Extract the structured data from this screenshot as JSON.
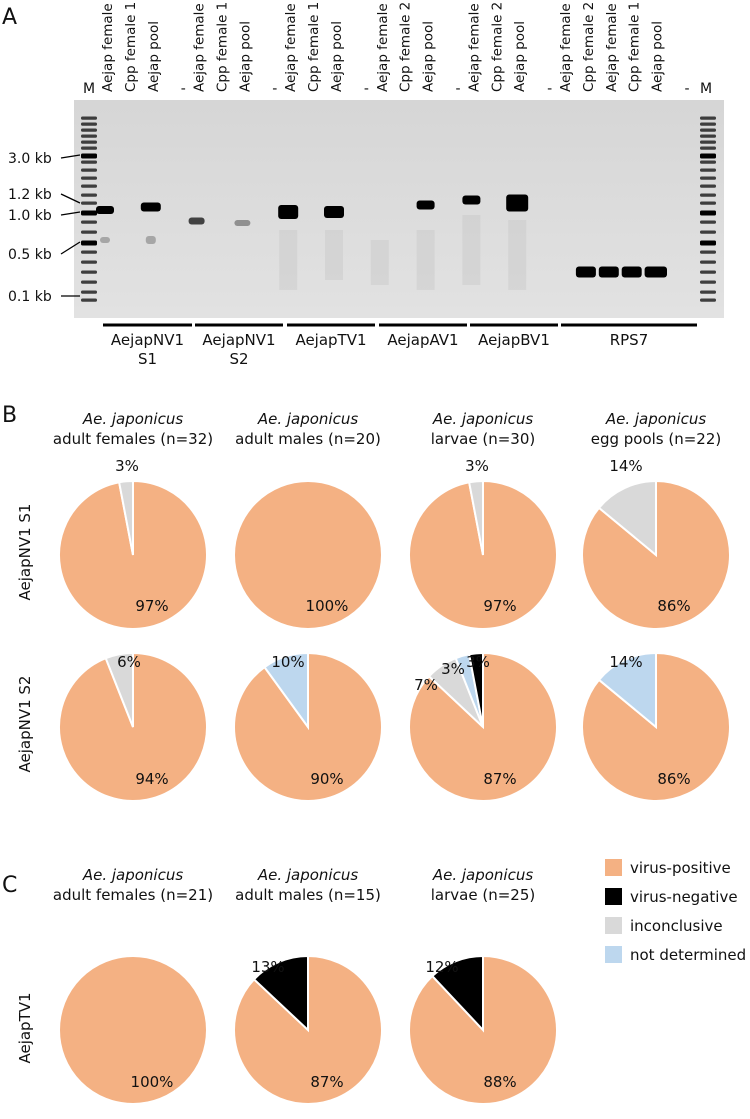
{
  "colors": {
    "virus_positive": "#f4b183",
    "virus_negative": "#000000",
    "inconclusive": "#d9d9d9",
    "not_determined": "#bdd7ee"
  },
  "panel_a": {
    "letter": "A",
    "marker_label": "M",
    "lane_labels": [
      "Aejap female 1",
      "Cpp female 1",
      "Aejap pool",
      "-",
      "Aejap female 1",
      "Cpp female 1",
      "Aejap pool",
      "-",
      "Aejap female 1",
      "Cpp female 1",
      "Aejap pool",
      "-",
      "Aejap female 2",
      "Cpp female 2",
      "Aejap pool",
      "-",
      "Aejap female 2",
      "Cpp female 2",
      "Aejap pool",
      "-",
      "Aejap female 2",
      "Cpp female 2",
      "Aejap female 1",
      "Cpp female 1",
      "Aejap pool",
      "-"
    ],
    "size_labels": [
      "3.0 kb",
      "1.2 kb",
      "1.0 kb",
      "0.5 kb",
      "0.1 kb"
    ],
    "groups": [
      {
        "line1": "AejapNV1",
        "line2": "S1"
      },
      {
        "line1": "AejapNV1",
        "line2": "S2"
      },
      {
        "line1": "AejapTV1",
        "line2": ""
      },
      {
        "line1": "AejapAV1",
        "line2": ""
      },
      {
        "line1": "AejapBV1",
        "line2": ""
      },
      {
        "line1": "RPS7",
        "line2": ""
      }
    ]
  },
  "panel_b": {
    "letter": "B",
    "row_labels": [
      "AejapNV1 S1",
      "AejapNV1 S2"
    ]
  },
  "panel_c": {
    "letter": "C",
    "row_labels": [
      "AejapTV1"
    ]
  },
  "chart_data": [
    {
      "type": "pie",
      "panel": "B",
      "row": "AejapNV1 S1",
      "title_species": "Ae. japonicus",
      "title_group": "adult females (n=32)",
      "slices": [
        {
          "label": "virus-positive",
          "value": 97,
          "text": "97%"
        },
        {
          "label": "inconclusive",
          "value": 3,
          "text": "3%"
        }
      ]
    },
    {
      "type": "pie",
      "panel": "B",
      "row": "AejapNV1 S1",
      "title_species": "Ae. japonicus",
      "title_group": "adult males (n=20)",
      "slices": [
        {
          "label": "virus-positive",
          "value": 100,
          "text": "100%"
        }
      ]
    },
    {
      "type": "pie",
      "panel": "B",
      "row": "AejapNV1 S1",
      "title_species": "Ae. japonicus",
      "title_group": "larvae (n=30)",
      "slices": [
        {
          "label": "virus-positive",
          "value": 97,
          "text": "97%"
        },
        {
          "label": "inconclusive",
          "value": 3,
          "text": "3%"
        }
      ]
    },
    {
      "type": "pie",
      "panel": "B",
      "row": "AejapNV1 S1",
      "title_species": "Ae. japonicus",
      "title_group": "egg pools (n=22)",
      "slices": [
        {
          "label": "virus-positive",
          "value": 86,
          "text": "86%"
        },
        {
          "label": "inconclusive",
          "value": 14,
          "text": "14%"
        }
      ]
    },
    {
      "type": "pie",
      "panel": "B",
      "row": "AejapNV1 S2",
      "title_species": "",
      "title_group": "",
      "slices": [
        {
          "label": "virus-positive",
          "value": 94,
          "text": "94%"
        },
        {
          "label": "inconclusive",
          "value": 6,
          "text": "6%"
        }
      ]
    },
    {
      "type": "pie",
      "panel": "B",
      "row": "AejapNV1 S2",
      "title_species": "",
      "title_group": "",
      "slices": [
        {
          "label": "virus-positive",
          "value": 90,
          "text": "90%"
        },
        {
          "label": "not determined",
          "value": 10,
          "text": "10%"
        }
      ]
    },
    {
      "type": "pie",
      "panel": "B",
      "row": "AejapNV1 S2",
      "title_species": "",
      "title_group": "",
      "slices": [
        {
          "label": "virus-positive",
          "value": 87,
          "text": "87%"
        },
        {
          "label": "inconclusive",
          "value": 7,
          "text": "7%"
        },
        {
          "label": "not determined",
          "value": 3,
          "text": "3%"
        },
        {
          "label": "virus-negative",
          "value": 3,
          "text": "3%"
        }
      ]
    },
    {
      "type": "pie",
      "panel": "B",
      "row": "AejapNV1 S2",
      "title_species": "",
      "title_group": "",
      "slices": [
        {
          "label": "virus-positive",
          "value": 86,
          "text": "86%"
        },
        {
          "label": "not determined",
          "value": 14,
          "text": "14%"
        }
      ]
    },
    {
      "type": "pie",
      "panel": "C",
      "row": "AejapTV1",
      "title_species": "Ae. japonicus",
      "title_group": "adult females (n=21)",
      "slices": [
        {
          "label": "virus-positive",
          "value": 100,
          "text": "100%"
        }
      ]
    },
    {
      "type": "pie",
      "panel": "C",
      "row": "AejapTV1",
      "title_species": "Ae. japonicus",
      "title_group": "adult males (n=15)",
      "slices": [
        {
          "label": "virus-positive",
          "value": 87,
          "text": "87%"
        },
        {
          "label": "virus-negative",
          "value": 13,
          "text": "13%"
        }
      ]
    },
    {
      "type": "pie",
      "panel": "C",
      "row": "AejapTV1",
      "title_species": "Ae. japonicus",
      "title_group": "larvae (n=25)",
      "slices": [
        {
          "label": "virus-positive",
          "value": 88,
          "text": "88%"
        },
        {
          "label": "virus-negative",
          "value": 12,
          "text": "12%"
        }
      ]
    }
  ],
  "legend": [
    {
      "label": "virus-positive",
      "color": "#f4b183"
    },
    {
      "label": "virus-negative",
      "color": "#000000"
    },
    {
      "label": "inconclusive",
      "color": "#d9d9d9"
    },
    {
      "label": "not determined",
      "color": "#bdd7ee"
    }
  ]
}
